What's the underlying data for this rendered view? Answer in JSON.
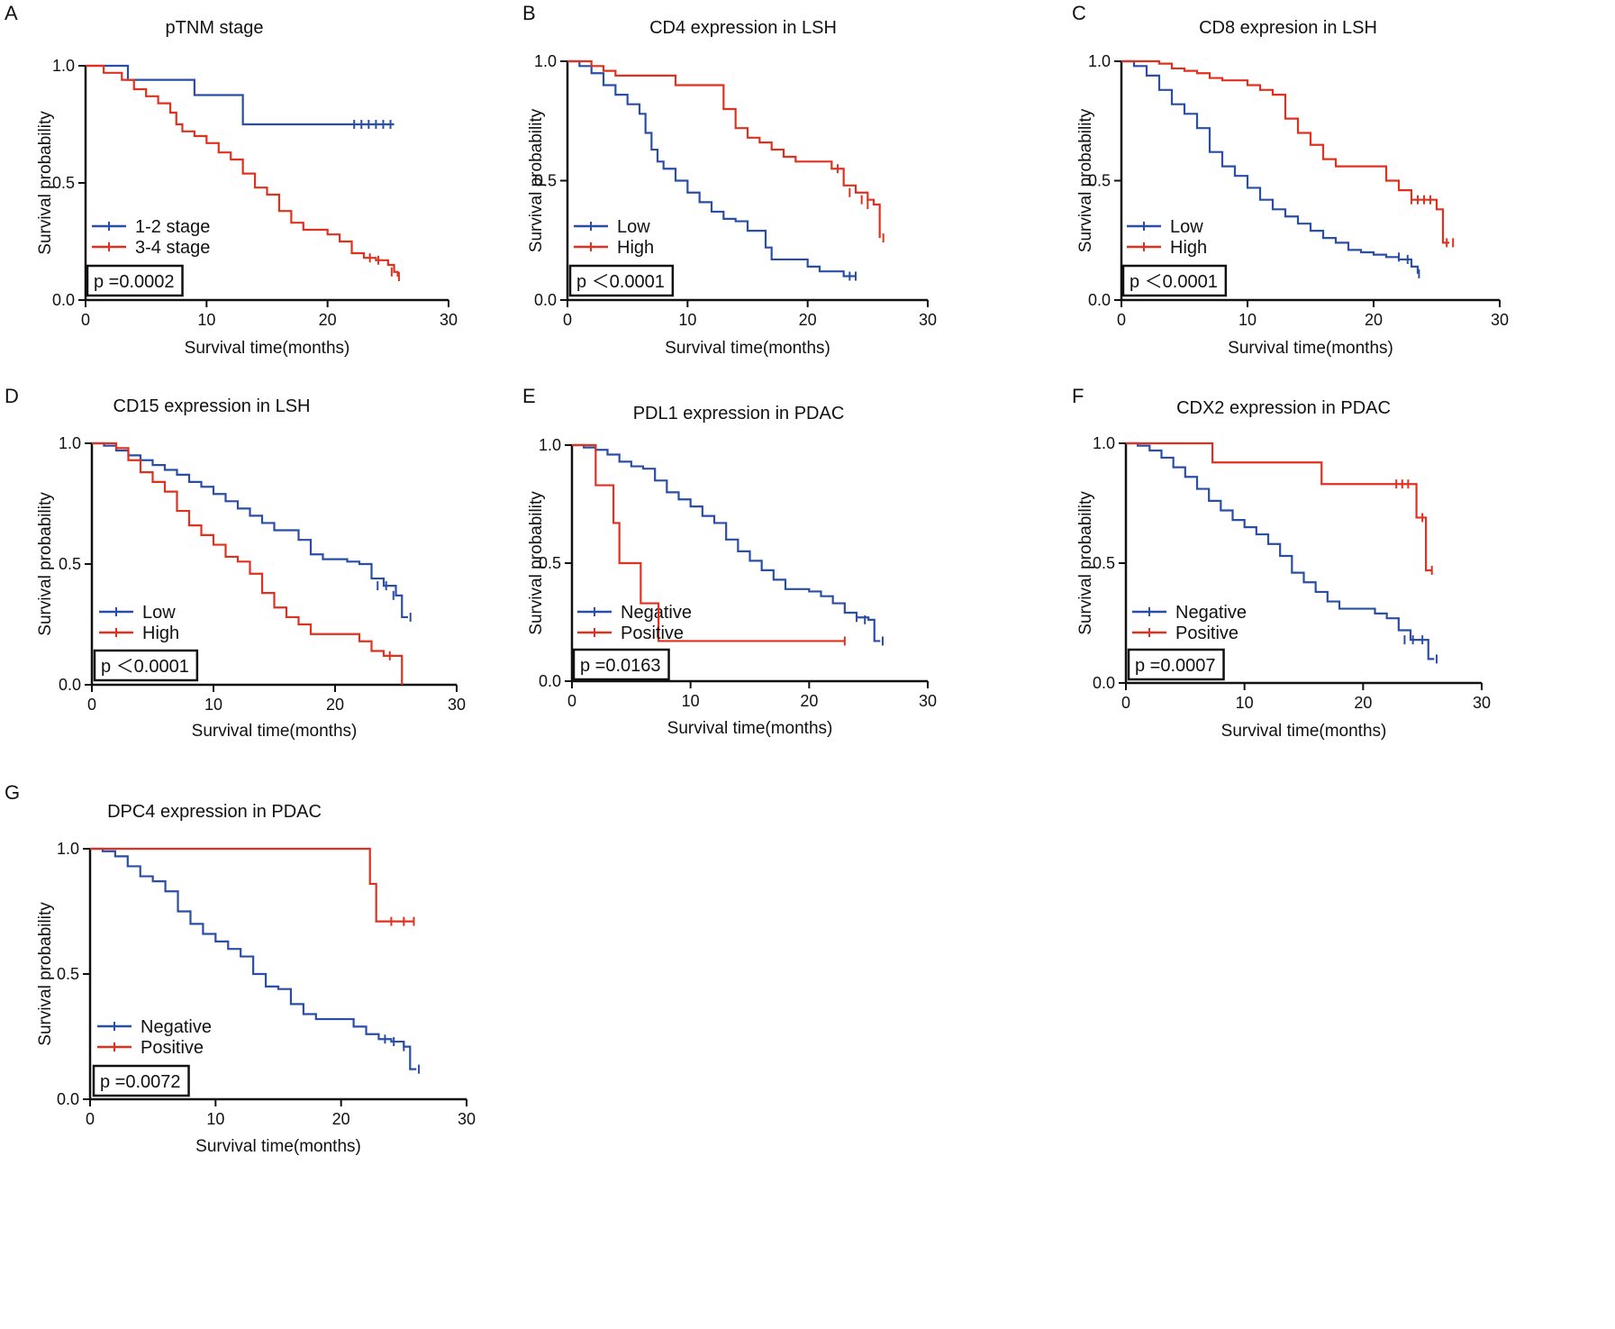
{
  "colors": {
    "blue": "#2a4ea6",
    "red": "#e0301e",
    "axis": "#111111"
  },
  "chart_data": [
    {
      "panel": "A",
      "type": "line",
      "title": "pTNM stage",
      "xlabel": "Survival time(months)",
      "ylabel": "Survival probability",
      "xlim": [
        0,
        30
      ],
      "ylim": [
        0,
        1.0
      ],
      "xticks": [
        "0",
        "10",
        "20",
        "30"
      ],
      "yticks": [
        "0.0",
        "0.5",
        "1.0"
      ],
      "pvalue": "p =0.0002",
      "series": [
        {
          "name": "1-2 stage",
          "color": "#2a4ea6",
          "x": [
            0,
            3.5,
            3.5,
            9,
            9,
            13,
            13,
            25.5
          ],
          "y": [
            1.0,
            1.0,
            0.94,
            0.94,
            0.875,
            0.875,
            0.75,
            0.75
          ],
          "censor_x": [
            22.2,
            22.8,
            23.4,
            24.0,
            24.6,
            25.2
          ],
          "censor_y": [
            0.75,
            0.75,
            0.75,
            0.75,
            0.75,
            0.75
          ]
        },
        {
          "name": "3-4 stage",
          "color": "#e0301e",
          "x": [
            0,
            1.5,
            3,
            4,
            5,
            6,
            7,
            7.5,
            8,
            9,
            10,
            11,
            12,
            13,
            14,
            15,
            16,
            17,
            18,
            19,
            20,
            21,
            22,
            23,
            24,
            25,
            25.5,
            25.8
          ],
          "y": [
            1.0,
            0.97,
            0.94,
            0.9,
            0.87,
            0.84,
            0.8,
            0.75,
            0.72,
            0.7,
            0.67,
            0.63,
            0.6,
            0.54,
            0.48,
            0.45,
            0.38,
            0.33,
            0.3,
            0.3,
            0.28,
            0.25,
            0.2,
            0.18,
            0.17,
            0.15,
            0.12,
            0.1
          ],
          "censor_x": [
            23.5,
            24.2,
            25.3,
            25.9
          ],
          "censor_y": [
            0.18,
            0.17,
            0.12,
            0.1
          ]
        }
      ]
    },
    {
      "panel": "B",
      "type": "line",
      "title": "CD4 expression in LSH",
      "xlabel": "Survival time(months)",
      "ylabel": "Survival probability",
      "xlim": [
        0,
        30
      ],
      "ylim": [
        0,
        1.0
      ],
      "xticks": [
        "0",
        "10",
        "20",
        "30"
      ],
      "yticks": [
        "0.0",
        "0.5",
        "1.0"
      ],
      "pvalue": "p ＜0.0001",
      "series": [
        {
          "name": "Low",
          "color": "#2a4ea6",
          "x": [
            0,
            1,
            2,
            3,
            4,
            5,
            6,
            6.5,
            7,
            7.5,
            8,
            9,
            10,
            11,
            12,
            13,
            14,
            15,
            16,
            16.5,
            17,
            18,
            19,
            20,
            21,
            22,
            23,
            24
          ],
          "y": [
            1.0,
            0.98,
            0.95,
            0.9,
            0.86,
            0.82,
            0.78,
            0.7,
            0.63,
            0.58,
            0.55,
            0.5,
            0.45,
            0.41,
            0.37,
            0.34,
            0.33,
            0.29,
            0.29,
            0.22,
            0.17,
            0.17,
            0.17,
            0.14,
            0.12,
            0.12,
            0.1,
            0.1
          ],
          "censor_x": [
            23.5,
            24.0
          ],
          "censor_y": [
            0.1,
            0.1
          ]
        },
        {
          "name": "High",
          "color": "#e0301e",
          "x": [
            0,
            2,
            3,
            4,
            5,
            8,
            9,
            12,
            13,
            14,
            15,
            16,
            17,
            18,
            19,
            20,
            21,
            22,
            23,
            24,
            25,
            25.5,
            26
          ],
          "y": [
            1.0,
            0.98,
            0.96,
            0.94,
            0.94,
            0.94,
            0.9,
            0.9,
            0.8,
            0.72,
            0.68,
            0.66,
            0.63,
            0.6,
            0.58,
            0.58,
            0.58,
            0.55,
            0.48,
            0.45,
            0.42,
            0.4,
            0.26
          ],
          "censor_x": [
            22.5,
            23.5,
            24.5,
            25.0,
            26.3
          ],
          "censor_y": [
            0.55,
            0.45,
            0.42,
            0.4,
            0.26
          ]
        }
      ]
    },
    {
      "panel": "C",
      "type": "line",
      "title": "CD8 expresion in LSH",
      "xlabel": "Survival time(months)",
      "ylabel": "Survival probability",
      "xlim": [
        0,
        30
      ],
      "ylim": [
        0,
        1.0
      ],
      "xticks": [
        "0",
        "10",
        "20",
        "30"
      ],
      "yticks": [
        "0.0",
        "0.5",
        "1.0"
      ],
      "pvalue": "p ＜0.0001",
      "series": [
        {
          "name": "Low",
          "color": "#2a4ea6",
          "x": [
            0,
            1,
            2,
            3,
            4,
            5,
            6,
            7,
            8,
            9,
            10,
            11,
            12,
            13,
            14,
            15,
            16,
            17,
            18,
            19,
            20,
            21,
            22,
            23,
            23.5
          ],
          "y": [
            1.0,
            0.98,
            0.94,
            0.88,
            0.82,
            0.78,
            0.72,
            0.62,
            0.56,
            0.52,
            0.47,
            0.42,
            0.38,
            0.35,
            0.32,
            0.29,
            0.26,
            0.24,
            0.21,
            0.2,
            0.19,
            0.18,
            0.17,
            0.14,
            0.11
          ],
          "censor_x": [
            22.0,
            22.7,
            23.6
          ],
          "censor_y": [
            0.18,
            0.17,
            0.11
          ]
        },
        {
          "name": "High",
          "color": "#e0301e",
          "x": [
            0,
            3,
            4,
            5,
            6,
            7,
            8,
            9,
            10,
            11,
            12,
            13,
            14,
            15,
            16,
            17,
            18,
            19,
            20,
            21,
            22,
            23,
            24,
            25,
            25.5,
            26
          ],
          "y": [
            1.0,
            0.99,
            0.97,
            0.96,
            0.95,
            0.93,
            0.92,
            0.92,
            0.9,
            0.88,
            0.86,
            0.76,
            0.7,
            0.65,
            0.59,
            0.56,
            0.56,
            0.56,
            0.56,
            0.5,
            0.46,
            0.42,
            0.42,
            0.38,
            0.24,
            0.24
          ],
          "censor_x": [
            23.0,
            23.5,
            24.0,
            24.5,
            25.8,
            26.3
          ],
          "censor_y": [
            0.42,
            0.42,
            0.42,
            0.42,
            0.24,
            0.24
          ]
        }
      ]
    },
    {
      "panel": "D",
      "type": "line",
      "title": "CD15 expression in LSH",
      "xlabel": "Survival time(months)",
      "ylabel": "Survival probability",
      "xlim": [
        0,
        30
      ],
      "ylim": [
        0,
        1.0
      ],
      "xticks": [
        "0",
        "10",
        "20",
        "30"
      ],
      "yticks": [
        "0.0",
        "0.5",
        "1.0"
      ],
      "pvalue": "p ＜0.0001",
      "series": [
        {
          "name": "Low",
          "color": "#2a4ea6",
          "x": [
            0,
            1,
            2,
            3,
            4,
            5,
            6,
            7,
            8,
            9,
            10,
            11,
            12,
            13,
            14,
            15,
            16,
            17,
            18,
            19,
            20,
            21,
            22,
            23,
            24,
            25,
            25.5,
            26
          ],
          "y": [
            1.0,
            0.99,
            0.97,
            0.95,
            0.93,
            0.91,
            0.89,
            0.87,
            0.84,
            0.82,
            0.79,
            0.76,
            0.73,
            0.7,
            0.67,
            0.64,
            0.64,
            0.6,
            0.54,
            0.52,
            0.52,
            0.51,
            0.5,
            0.44,
            0.41,
            0.37,
            0.28,
            0.28
          ],
          "censor_x": [
            23.5,
            24.2,
            24.8,
            26.2
          ],
          "censor_y": [
            0.41,
            0.41,
            0.37,
            0.28
          ]
        },
        {
          "name": "High",
          "color": "#e0301e",
          "x": [
            0,
            2,
            3,
            4,
            5,
            6,
            7,
            8,
            9,
            10,
            11,
            12,
            13,
            14,
            15,
            16,
            17,
            18,
            19,
            20,
            21,
            22,
            23,
            24,
            25,
            25.5
          ],
          "y": [
            1.0,
            0.98,
            0.93,
            0.88,
            0.84,
            0.8,
            0.72,
            0.66,
            0.62,
            0.58,
            0.53,
            0.51,
            0.46,
            0.38,
            0.32,
            0.28,
            0.25,
            0.21,
            0.21,
            0.21,
            0.21,
            0.18,
            0.14,
            0.12,
            0.12,
            0.0
          ],
          "censor_x": [
            24.5
          ],
          "censor_y": [
            0.12
          ]
        }
      ]
    },
    {
      "panel": "E",
      "type": "line",
      "title": "PDL1 expression in PDAC",
      "xlabel": "Survival time(months)",
      "ylabel": "Survival probability",
      "xlim": [
        0,
        30
      ],
      "ylim": [
        0,
        1.0
      ],
      "xticks": [
        "0",
        "10",
        "20",
        "30"
      ],
      "yticks": [
        "0.0",
        "0.5",
        "1.0"
      ],
      "pvalue": "p =0.0163",
      "series": [
        {
          "name": "Negative",
          "color": "#2a4ea6",
          "x": [
            0,
            1,
            2,
            3,
            4,
            5,
            6,
            7,
            8,
            9,
            10,
            11,
            12,
            13,
            14,
            15,
            16,
            17,
            18,
            19,
            20,
            21,
            22,
            23,
            24,
            25,
            25.5,
            26
          ],
          "y": [
            1.0,
            0.99,
            0.98,
            0.96,
            0.93,
            0.91,
            0.9,
            0.85,
            0.8,
            0.77,
            0.74,
            0.7,
            0.67,
            0.6,
            0.55,
            0.51,
            0.47,
            0.43,
            0.39,
            0.39,
            0.38,
            0.36,
            0.33,
            0.29,
            0.27,
            0.26,
            0.17,
            0.17
          ],
          "censor_x": [
            24.0,
            24.7,
            26.2
          ],
          "censor_y": [
            0.27,
            0.26,
            0.17
          ]
        },
        {
          "name": "Positive",
          "color": "#e0301e",
          "x": [
            0,
            2,
            2,
            3.5,
            3.5,
            4,
            4,
            5.8,
            5.8,
            7.3,
            7.3,
            23
          ],
          "y": [
            1.0,
            1.0,
            0.83,
            0.83,
            0.67,
            0.67,
            0.5,
            0.5,
            0.33,
            0.33,
            0.17,
            0.17
          ],
          "censor_x": [
            23.0
          ],
          "censor_y": [
            0.17
          ]
        }
      ]
    },
    {
      "panel": "F",
      "type": "line",
      "title": "CDX2 expression in PDAC",
      "xlabel": "Survival time(months)",
      "ylabel": "Survival probability",
      "xlim": [
        0,
        30
      ],
      "ylim": [
        0,
        1.0
      ],
      "xticks": [
        "0",
        "10",
        "20",
        "30"
      ],
      "yticks": [
        "0.0",
        "0.5",
        "1.0"
      ],
      "pvalue": "p =0.0007",
      "series": [
        {
          "name": "Negative",
          "color": "#2a4ea6",
          "x": [
            0,
            1,
            2,
            3,
            4,
            5,
            6,
            7,
            8,
            9,
            10,
            11,
            12,
            13,
            14,
            15,
            16,
            17,
            18,
            19,
            20,
            21,
            22,
            23,
            24,
            25,
            25.5,
            26
          ],
          "y": [
            1.0,
            0.99,
            0.97,
            0.94,
            0.9,
            0.86,
            0.81,
            0.76,
            0.72,
            0.68,
            0.65,
            0.62,
            0.58,
            0.53,
            0.46,
            0.42,
            0.38,
            0.34,
            0.31,
            0.31,
            0.31,
            0.29,
            0.27,
            0.22,
            0.18,
            0.18,
            0.1,
            0.1
          ],
          "censor_x": [
            23.5,
            24.2,
            25.0,
            26.2
          ],
          "censor_y": [
            0.18,
            0.18,
            0.18,
            0.1
          ]
        },
        {
          "name": "Positive",
          "color": "#e0301e",
          "x": [
            0,
            7.3,
            7.3,
            16.5,
            16.5,
            24.5,
            24.5,
            25.3,
            25.3,
            25.8
          ],
          "y": [
            1.0,
            1.0,
            0.92,
            0.92,
            0.83,
            0.83,
            0.69,
            0.69,
            0.47,
            0.47
          ],
          "censor_x": [
            22.8,
            23.3,
            23.8,
            25.0,
            25.8
          ],
          "censor_y": [
            0.83,
            0.83,
            0.83,
            0.69,
            0.47
          ]
        }
      ]
    },
    {
      "panel": "G",
      "type": "line",
      "title": "DPC4 expression in PDAC",
      "xlabel": "Survival time(months)",
      "ylabel": "Survival probability",
      "xlim": [
        0,
        30
      ],
      "ylim": [
        0,
        1.0
      ],
      "xticks": [
        "0",
        "10",
        "20",
        "30"
      ],
      "yticks": [
        "0.0",
        "0.5",
        "1.0"
      ],
      "pvalue": "p =0.0072",
      "series": [
        {
          "name": "Negative",
          "color": "#2a4ea6",
          "x": [
            0,
            1,
            2,
            3,
            4,
            5,
            6,
            7,
            8,
            9,
            10,
            11,
            12,
            13,
            14,
            15,
            16,
            17,
            18,
            19,
            20,
            21,
            22,
            23,
            24,
            25,
            25.5,
            26
          ],
          "y": [
            1.0,
            0.99,
            0.97,
            0.93,
            0.89,
            0.87,
            0.83,
            0.75,
            0.7,
            0.66,
            0.63,
            0.6,
            0.57,
            0.5,
            0.45,
            0.44,
            0.38,
            0.34,
            0.32,
            0.32,
            0.32,
            0.29,
            0.26,
            0.24,
            0.23,
            0.21,
            0.12,
            0.12
          ],
          "censor_x": [
            23.5,
            24.2,
            25.0,
            26.2
          ],
          "censor_y": [
            0.24,
            0.23,
            0.21,
            0.12
          ]
        },
        {
          "name": "Positive",
          "color": "#e0301e",
          "x": [
            0,
            22.3,
            22.3,
            22.8,
            22.8,
            25.8
          ],
          "y": [
            1.0,
            1.0,
            0.86,
            0.86,
            0.71,
            0.71
          ],
          "censor_x": [
            24.0,
            25.0,
            25.8
          ],
          "censor_y": [
            0.71,
            0.71,
            0.71
          ]
        }
      ]
    }
  ]
}
